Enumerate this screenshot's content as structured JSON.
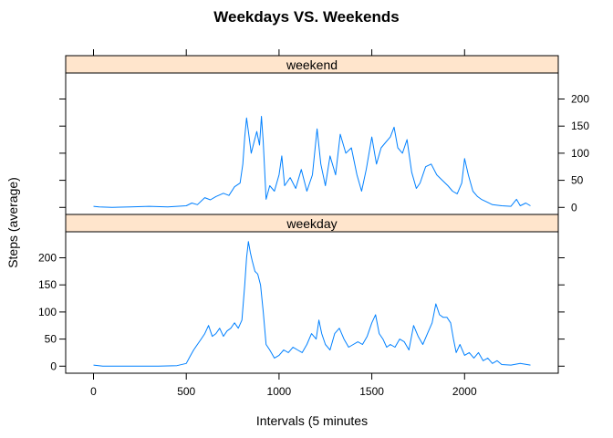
{
  "chart_data": {
    "type": "line",
    "title": "Weekdays VS. Weekends",
    "xlabel": "Intervals (5 minutes",
    "ylabel": "Steps (average)",
    "xlim": [
      -150,
      2505
    ],
    "ylim": [
      -13,
      248
    ],
    "x_ticks": [
      0,
      500,
      1000,
      1500,
      2000
    ],
    "y_ticks": [
      0,
      50,
      100,
      150,
      200
    ],
    "grid": false,
    "line_color": "#0080ff",
    "strip_color": "#ffe5cc",
    "panels": [
      {
        "name": "weekend",
        "series": [
          {
            "x": 0,
            "y": 2
          },
          {
            "x": 30,
            "y": 1
          },
          {
            "x": 100,
            "y": 0
          },
          {
            "x": 200,
            "y": 1
          },
          {
            "x": 300,
            "y": 2
          },
          {
            "x": 400,
            "y": 1
          },
          {
            "x": 500,
            "y": 3
          },
          {
            "x": 530,
            "y": 8
          },
          {
            "x": 560,
            "y": 5
          },
          {
            "x": 600,
            "y": 18
          },
          {
            "x": 630,
            "y": 14
          },
          {
            "x": 660,
            "y": 20
          },
          {
            "x": 700,
            "y": 26
          },
          {
            "x": 730,
            "y": 22
          },
          {
            "x": 760,
            "y": 38
          },
          {
            "x": 790,
            "y": 45
          },
          {
            "x": 805,
            "y": 80
          },
          {
            "x": 815,
            "y": 130
          },
          {
            "x": 825,
            "y": 165
          },
          {
            "x": 835,
            "y": 140
          },
          {
            "x": 850,
            "y": 100
          },
          {
            "x": 865,
            "y": 120
          },
          {
            "x": 880,
            "y": 140
          },
          {
            "x": 895,
            "y": 115
          },
          {
            "x": 905,
            "y": 168
          },
          {
            "x": 915,
            "y": 120
          },
          {
            "x": 930,
            "y": 15
          },
          {
            "x": 950,
            "y": 40
          },
          {
            "x": 975,
            "y": 30
          },
          {
            "x": 1000,
            "y": 60
          },
          {
            "x": 1015,
            "y": 95
          },
          {
            "x": 1030,
            "y": 40
          },
          {
            "x": 1060,
            "y": 55
          },
          {
            "x": 1090,
            "y": 35
          },
          {
            "x": 1120,
            "y": 70
          },
          {
            "x": 1150,
            "y": 30
          },
          {
            "x": 1180,
            "y": 60
          },
          {
            "x": 1205,
            "y": 145
          },
          {
            "x": 1225,
            "y": 80
          },
          {
            "x": 1250,
            "y": 40
          },
          {
            "x": 1275,
            "y": 95
          },
          {
            "x": 1305,
            "y": 60
          },
          {
            "x": 1330,
            "y": 135
          },
          {
            "x": 1360,
            "y": 100
          },
          {
            "x": 1390,
            "y": 110
          },
          {
            "x": 1420,
            "y": 60
          },
          {
            "x": 1445,
            "y": 30
          },
          {
            "x": 1470,
            "y": 70
          },
          {
            "x": 1500,
            "y": 130
          },
          {
            "x": 1525,
            "y": 80
          },
          {
            "x": 1550,
            "y": 110
          },
          {
            "x": 1575,
            "y": 120
          },
          {
            "x": 1600,
            "y": 130
          },
          {
            "x": 1620,
            "y": 148
          },
          {
            "x": 1640,
            "y": 110
          },
          {
            "x": 1665,
            "y": 100
          },
          {
            "x": 1690,
            "y": 125
          },
          {
            "x": 1715,
            "y": 65
          },
          {
            "x": 1740,
            "y": 35
          },
          {
            "x": 1760,
            "y": 45
          },
          {
            "x": 1790,
            "y": 75
          },
          {
            "x": 1820,
            "y": 80
          },
          {
            "x": 1850,
            "y": 60
          },
          {
            "x": 1880,
            "y": 50
          },
          {
            "x": 1910,
            "y": 40
          },
          {
            "x": 1935,
            "y": 30
          },
          {
            "x": 1960,
            "y": 25
          },
          {
            "x": 1985,
            "y": 45
          },
          {
            "x": 2000,
            "y": 90
          },
          {
            "x": 2020,
            "y": 60
          },
          {
            "x": 2045,
            "y": 30
          },
          {
            "x": 2070,
            "y": 20
          },
          {
            "x": 2090,
            "y": 15
          },
          {
            "x": 2120,
            "y": 10
          },
          {
            "x": 2150,
            "y": 5
          },
          {
            "x": 2200,
            "y": 3
          },
          {
            "x": 2250,
            "y": 2
          },
          {
            "x": 2280,
            "y": 15
          },
          {
            "x": 2300,
            "y": 3
          },
          {
            "x": 2330,
            "y": 8
          },
          {
            "x": 2355,
            "y": 3
          }
        ]
      },
      {
        "name": "weekday",
        "series": [
          {
            "x": 0,
            "y": 2
          },
          {
            "x": 50,
            "y": 0
          },
          {
            "x": 150,
            "y": 0
          },
          {
            "x": 250,
            "y": 0
          },
          {
            "x": 350,
            "y": 0
          },
          {
            "x": 450,
            "y": 1
          },
          {
            "x": 500,
            "y": 5
          },
          {
            "x": 520,
            "y": 18
          },
          {
            "x": 540,
            "y": 30
          },
          {
            "x": 560,
            "y": 40
          },
          {
            "x": 580,
            "y": 50
          },
          {
            "x": 600,
            "y": 60
          },
          {
            "x": 620,
            "y": 75
          },
          {
            "x": 640,
            "y": 55
          },
          {
            "x": 660,
            "y": 60
          },
          {
            "x": 680,
            "y": 70
          },
          {
            "x": 700,
            "y": 55
          },
          {
            "x": 720,
            "y": 65
          },
          {
            "x": 740,
            "y": 70
          },
          {
            "x": 760,
            "y": 80
          },
          {
            "x": 780,
            "y": 70
          },
          {
            "x": 800,
            "y": 85
          },
          {
            "x": 815,
            "y": 150
          },
          {
            "x": 825,
            "y": 200
          },
          {
            "x": 835,
            "y": 230
          },
          {
            "x": 845,
            "y": 210
          },
          {
            "x": 855,
            "y": 195
          },
          {
            "x": 870,
            "y": 175
          },
          {
            "x": 885,
            "y": 170
          },
          {
            "x": 900,
            "y": 150
          },
          {
            "x": 915,
            "y": 100
          },
          {
            "x": 930,
            "y": 40
          },
          {
            "x": 950,
            "y": 30
          },
          {
            "x": 975,
            "y": 15
          },
          {
            "x": 1000,
            "y": 20
          },
          {
            "x": 1025,
            "y": 30
          },
          {
            "x": 1050,
            "y": 25
          },
          {
            "x": 1075,
            "y": 35
          },
          {
            "x": 1100,
            "y": 30
          },
          {
            "x": 1125,
            "y": 25
          },
          {
            "x": 1150,
            "y": 40
          },
          {
            "x": 1175,
            "y": 60
          },
          {
            "x": 1200,
            "y": 50
          },
          {
            "x": 1215,
            "y": 85
          },
          {
            "x": 1230,
            "y": 60
          },
          {
            "x": 1250,
            "y": 40
          },
          {
            "x": 1275,
            "y": 30
          },
          {
            "x": 1300,
            "y": 60
          },
          {
            "x": 1325,
            "y": 70
          },
          {
            "x": 1350,
            "y": 50
          },
          {
            "x": 1375,
            "y": 35
          },
          {
            "x": 1400,
            "y": 40
          },
          {
            "x": 1425,
            "y": 45
          },
          {
            "x": 1450,
            "y": 40
          },
          {
            "x": 1475,
            "y": 55
          },
          {
            "x": 1500,
            "y": 80
          },
          {
            "x": 1520,
            "y": 95
          },
          {
            "x": 1540,
            "y": 60
          },
          {
            "x": 1560,
            "y": 50
          },
          {
            "x": 1580,
            "y": 35
          },
          {
            "x": 1600,
            "y": 40
          },
          {
            "x": 1625,
            "y": 35
          },
          {
            "x": 1650,
            "y": 50
          },
          {
            "x": 1675,
            "y": 45
          },
          {
            "x": 1700,
            "y": 30
          },
          {
            "x": 1725,
            "y": 75
          },
          {
            "x": 1750,
            "y": 55
          },
          {
            "x": 1775,
            "y": 40
          },
          {
            "x": 1800,
            "y": 60
          },
          {
            "x": 1825,
            "y": 80
          },
          {
            "x": 1845,
            "y": 115
          },
          {
            "x": 1865,
            "y": 95
          },
          {
            "x": 1885,
            "y": 90
          },
          {
            "x": 1905,
            "y": 90
          },
          {
            "x": 1925,
            "y": 80
          },
          {
            "x": 1940,
            "y": 50
          },
          {
            "x": 1955,
            "y": 25
          },
          {
            "x": 1975,
            "y": 40
          },
          {
            "x": 2000,
            "y": 20
          },
          {
            "x": 2025,
            "y": 25
          },
          {
            "x": 2050,
            "y": 15
          },
          {
            "x": 2075,
            "y": 25
          },
          {
            "x": 2100,
            "y": 10
          },
          {
            "x": 2125,
            "y": 15
          },
          {
            "x": 2150,
            "y": 5
          },
          {
            "x": 2175,
            "y": 10
          },
          {
            "x": 2200,
            "y": 3
          },
          {
            "x": 2250,
            "y": 2
          },
          {
            "x": 2300,
            "y": 5
          },
          {
            "x": 2355,
            "y": 2
          }
        ]
      }
    ]
  }
}
